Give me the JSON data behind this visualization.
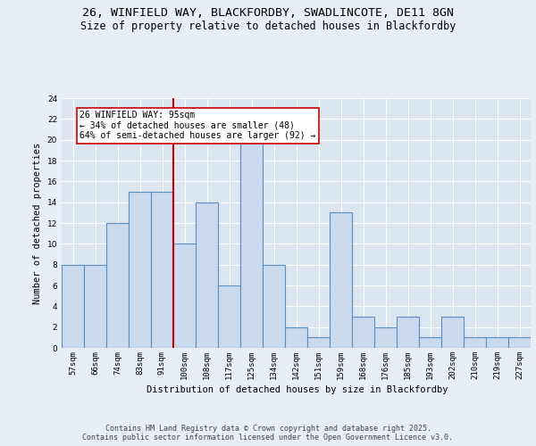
{
  "title_line1": "26, WINFIELD WAY, BLACKFORDBY, SWADLINCOTE, DE11 8GN",
  "title_line2": "Size of property relative to detached houses in Blackfordby",
  "xlabel": "Distribution of detached houses by size in Blackfordby",
  "ylabel": "Number of detached properties",
  "categories": [
    "57sqm",
    "66sqm",
    "74sqm",
    "83sqm",
    "91sqm",
    "100sqm",
    "108sqm",
    "117sqm",
    "125sqm",
    "134sqm",
    "142sqm",
    "151sqm",
    "159sqm",
    "168sqm",
    "176sqm",
    "185sqm",
    "193sqm",
    "202sqm",
    "210sqm",
    "219sqm",
    "227sqm"
  ],
  "values": [
    8,
    8,
    12,
    15,
    15,
    10,
    14,
    6,
    20,
    8,
    2,
    1,
    13,
    3,
    2,
    3,
    1,
    3,
    1,
    1,
    1
  ],
  "bar_color": "#c9d9ee",
  "bar_edge_color": "#5a8fc0",
  "bar_linewidth": 0.8,
  "vline_x": 4.5,
  "vline_color": "#cc0000",
  "annotation_text": "26 WINFIELD WAY: 95sqm\n← 34% of detached houses are smaller (48)\n64% of semi-detached houses are larger (92) →",
  "annotation_box_color": "#ffffff",
  "annotation_box_edge": "#cc0000",
  "ylim": [
    0,
    24
  ],
  "yticks": [
    0,
    2,
    4,
    6,
    8,
    10,
    12,
    14,
    16,
    18,
    20,
    22,
    24
  ],
  "background_color": "#e8eef5",
  "plot_bg_color": "#dce6f0",
  "footer_text": "Contains HM Land Registry data © Crown copyright and database right 2025.\nContains public sector information licensed under the Open Government Licence v3.0.",
  "title_fontsize": 9.5,
  "subtitle_fontsize": 8.5,
  "axis_label_fontsize": 7.5,
  "tick_fontsize": 6.5,
  "annotation_fontsize": 7,
  "footer_fontsize": 6
}
